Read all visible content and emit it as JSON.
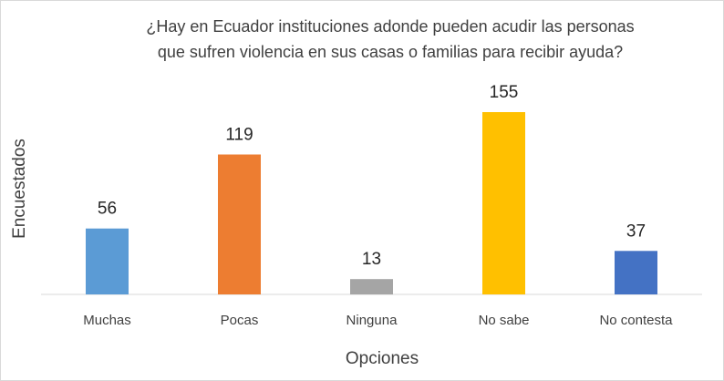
{
  "chart_data": {
    "type": "bar",
    "title": [
      "¿Hay en Ecuador instituciones adonde pueden acudir las personas",
      "que sufren violencia  en sus casas o  familias para recibir ayuda?"
    ],
    "xlabel": "Opciones",
    "ylabel": "Encuestados",
    "categories": [
      "Muchas",
      "Pocas",
      "Ninguna",
      "No sabe",
      "No contesta"
    ],
    "values": [
      56,
      119,
      13,
      155,
      37
    ],
    "colors": [
      "#5b9bd5",
      "#ed7d31",
      "#a5a5a5",
      "#ffc000",
      "#4472c4"
    ],
    "ylim": [
      0,
      170
    ],
    "grid": false,
    "legend": "none"
  }
}
